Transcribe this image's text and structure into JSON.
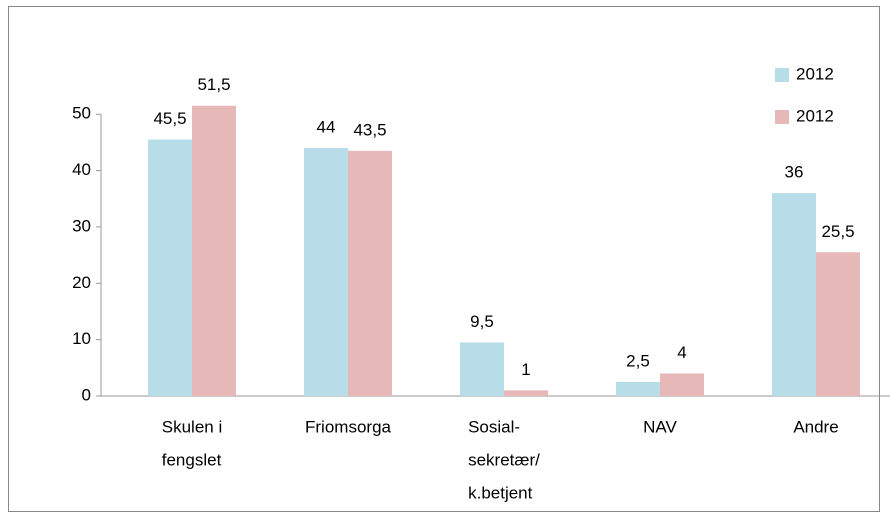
{
  "chart_data": {
    "type": "bar",
    "categories": [
      [
        "Skulen i",
        "fengslet"
      ],
      [
        "Friomsorga"
      ],
      [
        "Sosial-",
        "sekretær/",
        "k.betjent"
      ],
      [
        "NAV"
      ],
      [
        "Andre"
      ]
    ],
    "series": [
      {
        "name": "2012",
        "color": "#b7dde8",
        "values": [
          45.5,
          44,
          9.5,
          2.5,
          36
        ],
        "value_labels": [
          "45,5",
          "44",
          "9,5",
          "2,5",
          "36"
        ]
      },
      {
        "name": "2012",
        "color": "#e6b9b8",
        "values": [
          51.5,
          43.5,
          1,
          4,
          25.5
        ],
        "value_labels": [
          "51,5",
          "43,5",
          "1",
          "4",
          "25,5"
        ]
      }
    ],
    "ylim": [
      0,
      55
    ],
    "yticks": [
      0,
      10,
      20,
      30,
      40,
      50
    ],
    "legend": "top-right"
  }
}
